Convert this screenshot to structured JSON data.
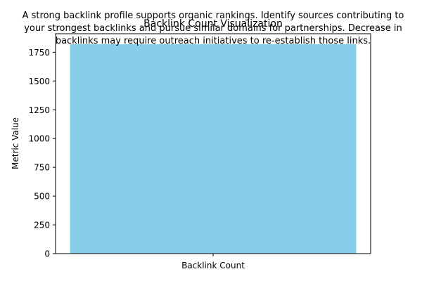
{
  "chart_data": {
    "type": "bar",
    "title": "Backlink Count Visualization",
    "annotation_lines": [
      "A strong backlink profile supports organic rankings. Identify sources contributing to",
      "your strongest backlinks and pursue similar domains for partnerships. Decrease in",
      "backlinks may require outreach initiatives to re-establish those links."
    ],
    "categories": [
      "Backlink Count"
    ],
    "values": [
      1820
    ],
    "xlabel": "",
    "ylabel": "Metric Value",
    "ylim": [
      0,
      1911
    ],
    "yticks": [
      0,
      250,
      500,
      750,
      1000,
      1250,
      1500,
      1750
    ],
    "bar_color": "#87CEEB",
    "grid": false
  }
}
